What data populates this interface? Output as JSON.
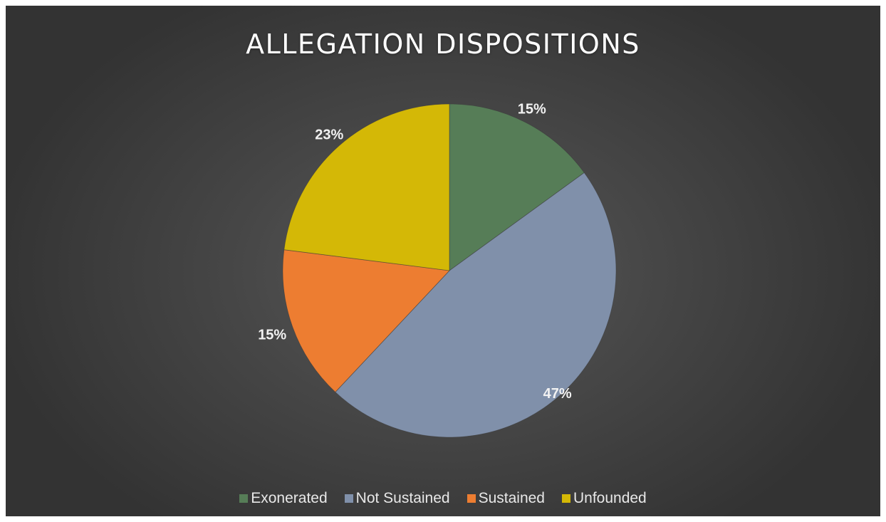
{
  "chart_data": {
    "type": "pie",
    "title": "ALLEGATION DISPOSITIONS",
    "categories": [
      "Exonerated",
      "Not Sustained",
      "Sustained",
      "Unfounded"
    ],
    "values": [
      15,
      47,
      15,
      23
    ],
    "labels": [
      "15%",
      "47%",
      "15%",
      "23%"
    ],
    "colors": [
      "#567d57",
      "#8090aa",
      "#ed7d31",
      "#d4b806"
    ],
    "legend_position": "bottom"
  }
}
